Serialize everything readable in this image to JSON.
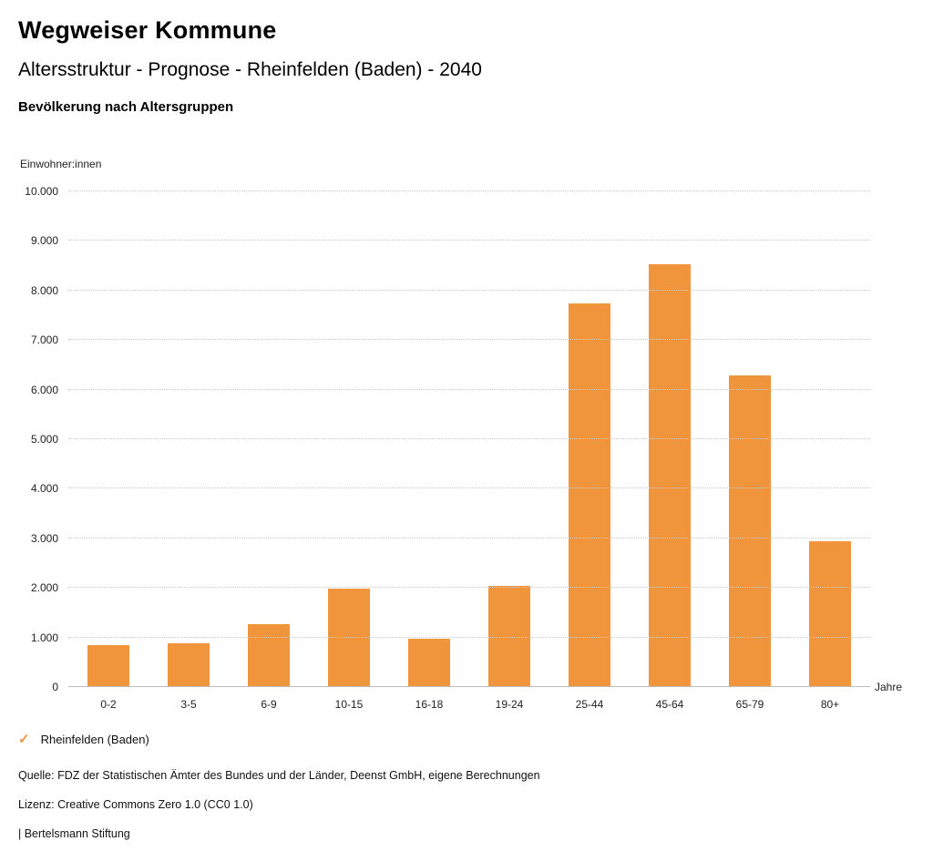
{
  "header": {
    "title": "Wegweiser Kommune",
    "subtitle": "Altersstruktur - Prognose - Rheinfelden (Baden) - 2040",
    "chart_title": "Bevölkerung nach Altersgruppen"
  },
  "chart_data": {
    "type": "bar",
    "title": "Bevölkerung nach Altersgruppen",
    "categories": [
      "0-2",
      "3-5",
      "6-9",
      "10-15",
      "16-18",
      "19-24",
      "25-44",
      "45-64",
      "65-79",
      "80+"
    ],
    "values": [
      840,
      890,
      1260,
      1980,
      980,
      2040,
      7740,
      8530,
      6280,
      2950
    ],
    "series_name": "Rheinfelden (Baden)",
    "ylabel": "Einwohner:innen",
    "xlabel": "Jahre",
    "ylim": [
      0,
      10000
    ],
    "ytick_step": 1000,
    "ytick_labels": [
      "0",
      "1.000",
      "2.000",
      "3.000",
      "4.000",
      "5.000",
      "6.000",
      "7.000",
      "8.000",
      "9.000",
      "10.000"
    ],
    "bar_color": "#F0953B",
    "grid": true,
    "legend_position": "bottom"
  },
  "legend": {
    "marker": "✓",
    "label": "Rheinfelden (Baden)",
    "color": "#F0953B"
  },
  "footer": {
    "source": "Quelle: FDZ der Statistischen Ämter des Bundes und der Länder, Deenst GmbH, eigene Berechnungen",
    "license": "Lizenz: Creative Commons Zero 1.0 (CC0 1.0)",
    "attribution": "| Bertelsmann Stiftung"
  }
}
